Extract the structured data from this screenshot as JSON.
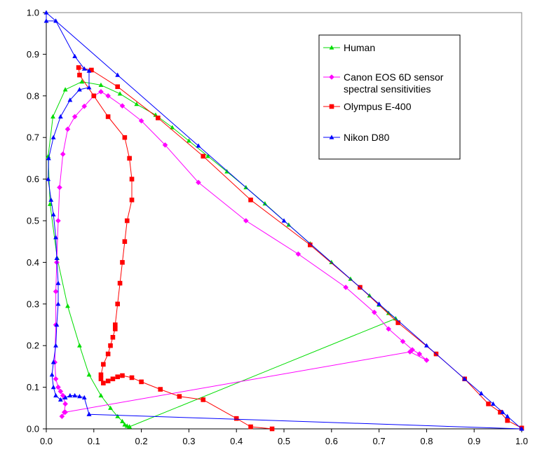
{
  "chart_data": {
    "type": "line",
    "title": "",
    "xlabel": "",
    "ylabel": "",
    "xlim": [
      0,
      1
    ],
    "ylim": [
      0,
      1
    ],
    "grid": false,
    "legend_position": "top-right",
    "x_ticks": [
      "0.0",
      "0.1",
      "0.2",
      "0.3",
      "0.4",
      "0.5",
      "0.6",
      "0.7",
      "0.8",
      "0.9",
      "1.0"
    ],
    "y_ticks": [
      "0.0",
      "0.1",
      "0.2",
      "0.3",
      "0.4",
      "0.5",
      "0.6",
      "0.7",
      "0.8",
      "0.9",
      "1.0"
    ],
    "series": [
      {
        "name": "Human",
        "color": "#00dd00",
        "marker": "triangle",
        "points": [
          [
            0.175,
            0.005
          ],
          [
            0.17,
            0.007
          ],
          [
            0.165,
            0.01
          ],
          [
            0.16,
            0.018
          ],
          [
            0.15,
            0.03
          ],
          [
            0.135,
            0.05
          ],
          [
            0.115,
            0.08
          ],
          [
            0.09,
            0.13
          ],
          [
            0.07,
            0.2
          ],
          [
            0.045,
            0.295
          ],
          [
            0.023,
            0.41
          ],
          [
            0.008,
            0.54
          ],
          [
            0.004,
            0.655
          ],
          [
            0.014,
            0.75
          ],
          [
            0.04,
            0.815
          ],
          [
            0.075,
            0.834
          ],
          [
            0.115,
            0.826
          ],
          [
            0.155,
            0.805
          ],
          [
            0.19,
            0.78
          ],
          [
            0.23,
            0.754
          ],
          [
            0.265,
            0.724
          ],
          [
            0.3,
            0.692
          ],
          [
            0.34,
            0.655
          ],
          [
            0.38,
            0.618
          ],
          [
            0.42,
            0.58
          ],
          [
            0.46,
            0.541
          ],
          [
            0.51,
            0.49
          ],
          [
            0.555,
            0.445
          ],
          [
            0.6,
            0.4
          ],
          [
            0.64,
            0.36
          ],
          [
            0.68,
            0.32
          ],
          [
            0.7,
            0.298
          ],
          [
            0.72,
            0.278
          ],
          [
            0.735,
            0.265
          ],
          [
            0.175,
            0.005
          ]
        ]
      },
      {
        "name": "Canon EOS 6D sensor spectral sensitivities",
        "color": "#ff00ff",
        "marker": "diamond",
        "points": [
          [
            0.033,
            0.03
          ],
          [
            0.038,
            0.04
          ],
          [
            0.04,
            0.06
          ],
          [
            0.035,
            0.08
          ],
          [
            0.03,
            0.09
          ],
          [
            0.025,
            0.1
          ],
          [
            0.02,
            0.12
          ],
          [
            0.018,
            0.16
          ],
          [
            0.02,
            0.25
          ],
          [
            0.02,
            0.33
          ],
          [
            0.022,
            0.4
          ],
          [
            0.025,
            0.5
          ],
          [
            0.028,
            0.58
          ],
          [
            0.035,
            0.66
          ],
          [
            0.045,
            0.72
          ],
          [
            0.06,
            0.75
          ],
          [
            0.08,
            0.775
          ],
          [
            0.1,
            0.8
          ],
          [
            0.115,
            0.81
          ],
          [
            0.13,
            0.8
          ],
          [
            0.16,
            0.776
          ],
          [
            0.2,
            0.74
          ],
          [
            0.25,
            0.682
          ],
          [
            0.32,
            0.592
          ],
          [
            0.42,
            0.5
          ],
          [
            0.53,
            0.42
          ],
          [
            0.63,
            0.34
          ],
          [
            0.69,
            0.28
          ],
          [
            0.72,
            0.24
          ],
          [
            0.75,
            0.21
          ],
          [
            0.77,
            0.19
          ],
          [
            0.785,
            0.18
          ],
          [
            0.8,
            0.165
          ],
          [
            0.8,
            0.165
          ],
          [
            0.765,
            0.185
          ],
          [
            0.04,
            0.04
          ]
        ]
      },
      {
        "name": "Olympus E-400",
        "color": "#ff0000",
        "marker": "square",
        "points": [
          [
            0.475,
            0.0
          ],
          [
            0.43,
            0.005
          ],
          [
            0.4,
            0.025
          ],
          [
            0.33,
            0.07
          ],
          [
            0.28,
            0.078
          ],
          [
            0.24,
            0.095
          ],
          [
            0.2,
            0.113
          ],
          [
            0.18,
            0.123
          ],
          [
            0.16,
            0.128
          ],
          [
            0.15,
            0.125
          ],
          [
            0.14,
            0.12
          ],
          [
            0.13,
            0.115
          ],
          [
            0.12,
            0.11
          ],
          [
            0.115,
            0.12
          ],
          [
            0.115,
            0.13
          ],
          [
            0.12,
            0.155
          ],
          [
            0.13,
            0.18
          ],
          [
            0.135,
            0.2
          ],
          [
            0.14,
            0.22
          ],
          [
            0.145,
            0.24
          ],
          [
            0.145,
            0.25
          ],
          [
            0.15,
            0.3
          ],
          [
            0.155,
            0.35
          ],
          [
            0.16,
            0.4
          ],
          [
            0.165,
            0.45
          ],
          [
            0.17,
            0.5
          ],
          [
            0.18,
            0.55
          ],
          [
            0.18,
            0.6
          ],
          [
            0.175,
            0.65
          ],
          [
            0.165,
            0.7
          ],
          [
            0.13,
            0.75
          ],
          [
            0.1,
            0.8
          ],
          [
            0.07,
            0.85
          ],
          [
            0.068,
            0.868
          ],
          [
            0.095,
            0.862
          ],
          [
            0.15,
            0.822
          ],
          [
            0.235,
            0.747
          ],
          [
            0.33,
            0.655
          ],
          [
            0.43,
            0.55
          ],
          [
            0.555,
            0.442
          ],
          [
            0.66,
            0.34
          ],
          [
            0.74,
            0.255
          ],
          [
            0.82,
            0.18
          ],
          [
            0.88,
            0.12
          ],
          [
            0.93,
            0.06
          ],
          [
            0.955,
            0.04
          ],
          [
            0.97,
            0.02
          ],
          [
            1.0,
            0.002
          ]
        ]
      },
      {
        "name": "Nikon D80",
        "color": "#0000ff",
        "marker": "triangle",
        "points": [
          [
            0.09,
            0.035
          ],
          [
            0.08,
            0.075
          ],
          [
            0.07,
            0.078
          ],
          [
            0.06,
            0.08
          ],
          [
            0.05,
            0.08
          ],
          [
            0.04,
            0.075
          ],
          [
            0.03,
            0.07
          ],
          [
            0.02,
            0.08
          ],
          [
            0.015,
            0.1
          ],
          [
            0.012,
            0.13
          ],
          [
            0.015,
            0.16
          ],
          [
            0.02,
            0.2
          ],
          [
            0.022,
            0.25
          ],
          [
            0.025,
            0.3
          ],
          [
            0.025,
            0.35
          ],
          [
            0.022,
            0.41
          ],
          [
            0.02,
            0.46
          ],
          [
            0.015,
            0.515
          ],
          [
            0.01,
            0.55
          ],
          [
            0.004,
            0.6
          ],
          [
            0.005,
            0.65
          ],
          [
            0.015,
            0.7
          ],
          [
            0.03,
            0.75
          ],
          [
            0.05,
            0.79
          ],
          [
            0.07,
            0.815
          ],
          [
            0.09,
            0.82
          ],
          [
            0.09,
            0.86
          ],
          [
            0.08,
            0.865
          ],
          [
            0.06,
            0.895
          ],
          [
            0.02,
            0.98
          ],
          [
            0.0,
            0.98
          ],
          [
            0.0,
            1.0
          ],
          [
            0.15,
            0.85
          ],
          [
            0.32,
            0.68
          ],
          [
            0.5,
            0.5
          ],
          [
            0.7,
            0.3
          ],
          [
            0.8,
            0.2
          ],
          [
            0.88,
            0.12
          ],
          [
            0.915,
            0.085
          ],
          [
            0.94,
            0.06
          ],
          [
            0.96,
            0.04
          ],
          [
            0.97,
            0.03
          ],
          [
            1.0,
            0.0
          ],
          [
            0.09,
            0.035
          ]
        ]
      }
    ]
  }
}
